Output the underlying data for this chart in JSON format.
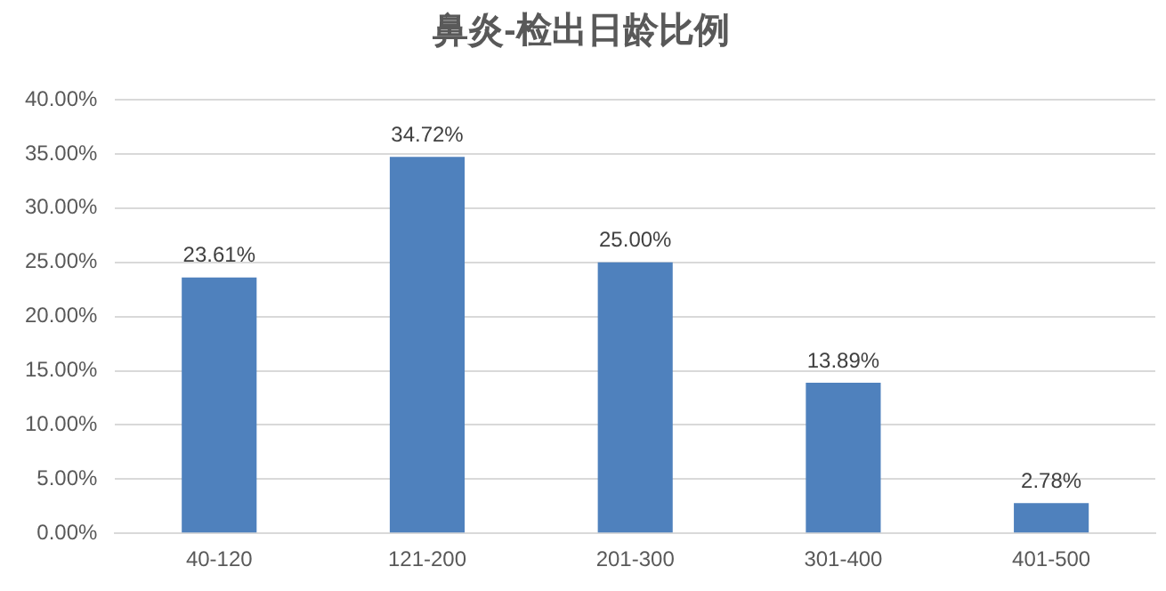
{
  "chart_data": {
    "type": "bar",
    "title": "鼻炎-检出日龄比例",
    "categories": [
      "40-120",
      "121-200",
      "201-300",
      "301-400",
      "401-500"
    ],
    "values": [
      23.61,
      34.72,
      25.0,
      13.89,
      2.78
    ],
    "value_labels": [
      "23.61%",
      "34.72%",
      "25.00%",
      "13.89%",
      "2.78%"
    ],
    "color": "#4f81bd",
    "ylim": [
      0,
      40
    ],
    "yticks": [
      {
        "value": 0,
        "label": "0.00%"
      },
      {
        "value": 5,
        "label": "5.00%"
      },
      {
        "value": 10,
        "label": "10.00%"
      },
      {
        "value": 15,
        "label": "15.00%"
      },
      {
        "value": 20,
        "label": "20.00%"
      },
      {
        "value": 25,
        "label": "25.00%"
      },
      {
        "value": 30,
        "label": "30.00%"
      },
      {
        "value": 35,
        "label": "35.00%"
      },
      {
        "value": 40,
        "label": "40.00%"
      }
    ],
    "grid": "y",
    "legend": false
  }
}
